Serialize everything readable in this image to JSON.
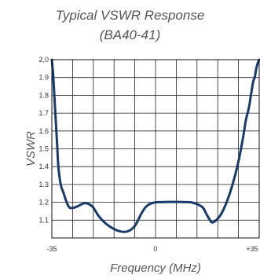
{
  "chart_data": {
    "type": "line",
    "title": "Typical VSWR Response",
    "subtitle": "(BA40-41)",
    "xlabel": "Frequency (MHz)",
    "ylabel": "VSWR",
    "xlim": [
      -35,
      35
    ],
    "ylim": [
      1.0,
      2.0
    ],
    "x_tick_labels": [
      "-35",
      "0",
      "+35"
    ],
    "y_tick_labels": [
      "2,0",
      "1.9",
      "1.8",
      "1.7",
      "1.6",
      "1.5",
      "1.4",
      "1.3",
      "1.2",
      "1.1"
    ],
    "grid": true,
    "line_color": "#173a6b",
    "series": [
      {
        "x": [
          -35,
          -34.5,
          -34,
          -33.3,
          -32.8,
          -32,
          -31,
          -30,
          -29,
          -27.5,
          -26,
          -24,
          -22.5,
          -21,
          -19.5,
          -18,
          -16,
          -14,
          -12,
          -10,
          -8,
          -6.5,
          -5,
          -3.5,
          -2,
          0,
          2,
          4,
          6,
          8,
          10,
          12,
          14,
          16,
          17,
          18,
          18.8,
          19.5,
          20.5,
          22,
          24,
          26,
          28,
          29.5,
          30.5,
          31.5,
          32.2,
          33,
          33.5,
          34,
          34.5,
          35
        ],
        "y": [
          2.0,
          1.9,
          1.75,
          1.55,
          1.4,
          1.3,
          1.25,
          1.2,
          1.17,
          1.17,
          1.18,
          1.195,
          1.19,
          1.17,
          1.13,
          1.1,
          1.07,
          1.05,
          1.037,
          1.035,
          1.05,
          1.08,
          1.13,
          1.17,
          1.19,
          1.2,
          1.201,
          1.202,
          1.202,
          1.202,
          1.201,
          1.2,
          1.19,
          1.17,
          1.14,
          1.11,
          1.09,
          1.088,
          1.1,
          1.13,
          1.2,
          1.3,
          1.43,
          1.56,
          1.66,
          1.73,
          1.8,
          1.88,
          1.9,
          1.95,
          1.98,
          2.0
        ]
      }
    ]
  }
}
